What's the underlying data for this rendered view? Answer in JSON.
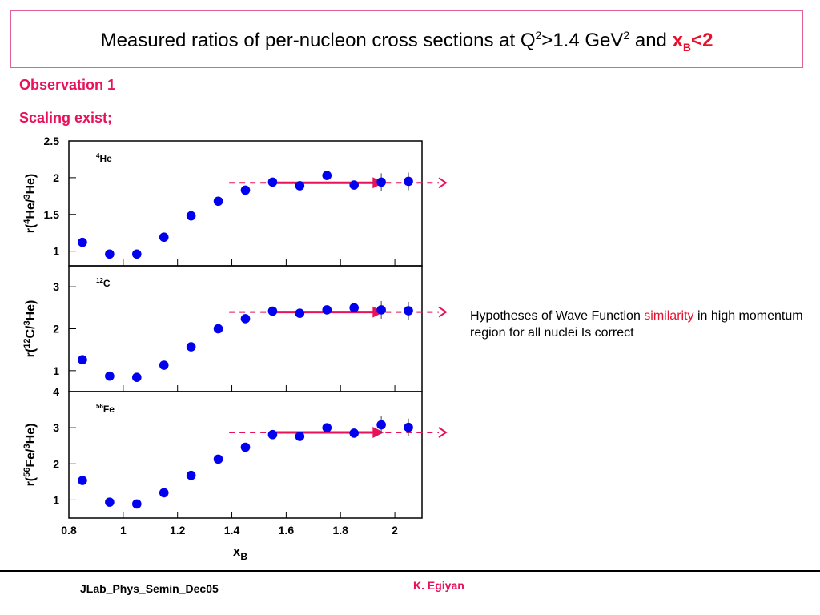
{
  "slide": {
    "title": {
      "main": "Measured ratios of per-nucleon cross sections at Q",
      "sup1": "2",
      "mid": ">1.4 GeV",
      "sup2": "2",
      "and": " and ",
      "xb": "x",
      "xb_sub": "B",
      "xb_rest": "<2"
    },
    "observation": "Observation 1",
    "scaling": "Scaling exist;",
    "hypothesis": {
      "pre": "Hypotheses of Wave Function ",
      "highlight": "similarity",
      "post": " in high momentum region for all  nuclei Is correct"
    },
    "footer_left": "JLab_Phys_Semin_Dec05",
    "footer_right": "K. Egiyan"
  },
  "colors": {
    "accent": "#e8115a",
    "title_red": "#e8112d",
    "marker": "#0000ee",
    "arrow": "#e8115a",
    "frame": "#e0609a"
  },
  "chart_data": {
    "type": "scatter",
    "x_axis": {
      "label": "x",
      "label_sub": "B",
      "range": [
        0.8,
        2.1
      ],
      "ticks": [
        0.8,
        1,
        1.2,
        1.4,
        1.6,
        1.8,
        2
      ],
      "tick_labels": [
        "0.8",
        "1",
        "1.2",
        "1.4",
        "1.6",
        "1.8",
        "2"
      ]
    },
    "x": [
      0.85,
      0.95,
      1.05,
      1.15,
      1.25,
      1.35,
      1.45,
      1.55,
      1.65,
      1.75,
      1.85,
      1.95,
      2.05
    ],
    "panels": [
      {
        "name": "He",
        "name_sup": "4",
        "ylabel": {
          "open": "r(",
          "sup1": "4",
          "mid": "He/",
          "sup2": "3",
          "close": "He)"
        },
        "ylim": [
          0.8,
          2.5
        ],
        "yticks": [
          1,
          1.5,
          2,
          2.5
        ],
        "ytick_labels": [
          "1",
          "1.5",
          "2",
          "2.5"
        ],
        "values": [
          1.12,
          0.96,
          0.96,
          1.19,
          1.48,
          1.68,
          1.83,
          1.94,
          1.89,
          2.03,
          1.9,
          1.94,
          1.95
        ],
        "plateau": 1.93
      },
      {
        "name": "C",
        "name_sup": "12",
        "ylabel": {
          "open": "r(",
          "sup1": "12",
          "mid": "C/",
          "sup2": "3",
          "close": "He)"
        },
        "ylim": [
          0.5,
          3.5
        ],
        "yticks": [
          1,
          2,
          3
        ],
        "ytick_labels": [
          "1",
          "2",
          "3"
        ],
        "values": [
          1.26,
          0.87,
          0.84,
          1.13,
          1.57,
          2.0,
          2.24,
          2.42,
          2.37,
          2.45,
          2.5,
          2.45,
          2.43
        ],
        "plateau": 2.4
      },
      {
        "name": "Fe",
        "name_sup": "56",
        "ylabel": {
          "open": "r(",
          "sup1": "56",
          "mid": "Fe/",
          "sup2": "3",
          "close": "He)"
        },
        "ylim": [
          0.5,
          4.0
        ],
        "yticks": [
          1,
          2,
          3,
          4
        ],
        "ytick_labels": [
          "1",
          "2",
          "3",
          "4"
        ],
        "values": [
          1.54,
          0.94,
          0.89,
          1.2,
          1.68,
          2.13,
          2.46,
          2.81,
          2.76,
          3.0,
          2.85,
          3.08,
          3.01
        ],
        "plateau": 2.87
      }
    ]
  }
}
